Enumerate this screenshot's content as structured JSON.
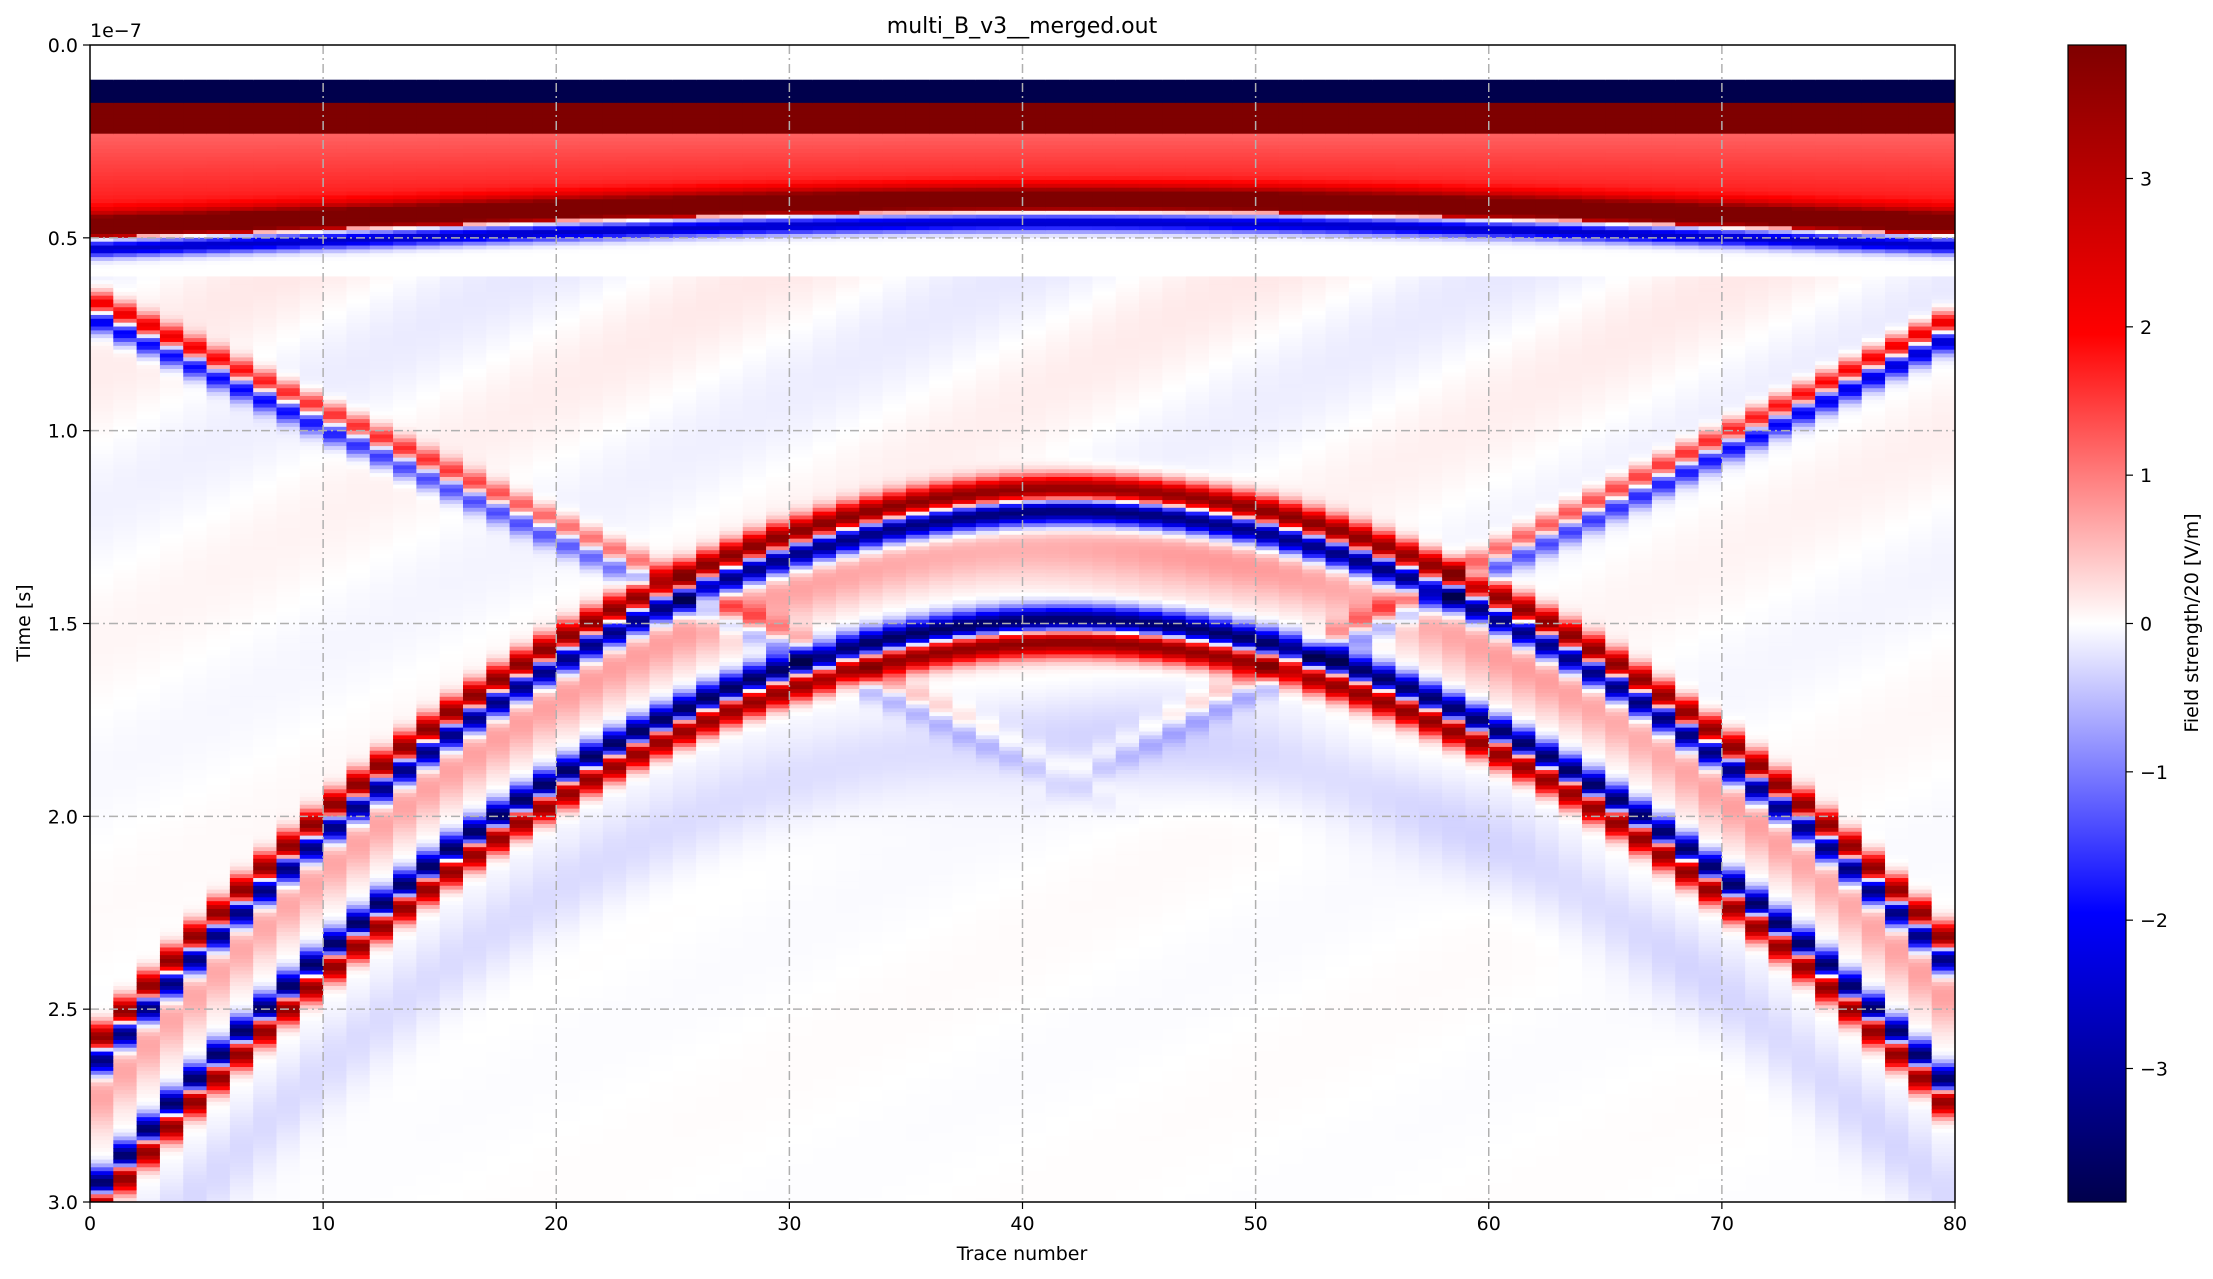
{
  "chart_data": {
    "type": "heatmap",
    "title": "multi_B_v3__merged.out",
    "xlabel": "Trace number",
    "ylabel": "Time [s]",
    "offset_text": "1e−7",
    "xlim": [
      0,
      80
    ],
    "ylim": [
      3e-07,
      0.0
    ],
    "x_ticks": [
      0,
      10,
      20,
      30,
      40,
      50,
      60,
      70,
      80
    ],
    "x_tick_labels": [
      "0",
      "10",
      "20",
      "30",
      "40",
      "50",
      "60",
      "70",
      "80"
    ],
    "y_ticks": [
      0.0,
      5e-08,
      1e-07,
      1.5e-07,
      2e-07,
      2.5e-07,
      3e-07
    ],
    "y_tick_labels": [
      "0.0",
      "0.5",
      "1.0",
      "1.5",
      "2.0",
      "2.5",
      "3.0"
    ],
    "grid": true,
    "colormap": "seismic",
    "colormap_colors": [
      "#00004c",
      "#0000ff",
      "#ffffff",
      "#ff0000",
      "#7f0000"
    ],
    "colorbar": {
      "label": "Field strength/20 [V/m]",
      "vmin": -3.9,
      "vmax": 3.9,
      "ticks": [
        -3,
        -2,
        -1,
        0,
        1,
        2,
        3
      ],
      "tick_labels": [
        "−3",
        "−2",
        "−1",
        "0",
        "1",
        "2",
        "3"
      ]
    },
    "features": [
      {
        "name": "direct wave negative band",
        "time_s": [
          9e-09,
          1.5e-08
        ],
        "value": -3.9
      },
      {
        "name": "direct wave positive band",
        "time_s": [
          1.5e-08,
          2.3e-08
        ],
        "value": 3.9
      },
      {
        "name": "ground reflection negative at edges",
        "trace": 0,
        "time_s": 5.7e-08
      },
      {
        "name": "ground reflection negative at center",
        "trace": 42,
        "time_s": 4.6e-08
      },
      {
        "name": "hyperbola 1 apex",
        "trace": 42,
        "time_s": 1.15e-07,
        "polarity": "negative then positive"
      },
      {
        "name": "hyperbola 1 at trace 20",
        "trace": 20,
        "time_s": 1.55e-07
      },
      {
        "name": "hyperbola 1 at trace 70",
        "trace": 70,
        "time_s": 1.75e-07
      },
      {
        "name": "hyperbola 2 apex",
        "trace": 42,
        "time_s": 1.49e-07,
        "polarity": "positive then negative"
      },
      {
        "name": "hyperbola 2 at trace 20",
        "trace": 20,
        "time_s": 1.9e-07
      },
      {
        "name": "hyperbola 2 at trace 70",
        "trace": 70,
        "time_s": 2.05e-07
      },
      {
        "name": "crossing diagonal event left",
        "trace": 0,
        "time_s": 6.8e-08,
        "end_trace": 30,
        "end_time_s": 1.55e-07
      },
      {
        "name": "crossing diagonal event right",
        "trace": 80,
        "time_s": 7.3e-08,
        "end_trace": 55,
        "end_time_s": 1.5e-07
      }
    ]
  }
}
